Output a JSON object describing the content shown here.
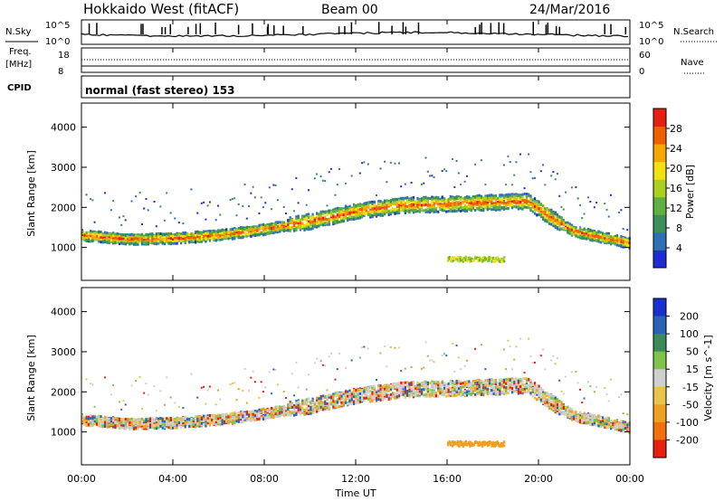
{
  "header": {
    "radar": "Hokkaido West (fitACF)",
    "beam": "Beam 00",
    "date": "24/Mar/2016"
  },
  "noise_panel": {
    "left_label": "N.Sky",
    "right_label": "N.Search",
    "left_ticks": [
      "10^5",
      "10^0"
    ],
    "right_ticks": [
      "10^5",
      "10^0"
    ]
  },
  "freq_panel": {
    "left_label_1": "Freq.",
    "left_label_2": "[MHz]",
    "left_ticks": [
      "18",
      "8"
    ],
    "right_label": "Nave",
    "right_ticks": [
      "60",
      "0"
    ]
  },
  "cpid_panel": {
    "label": "CPID",
    "text": "normal (fast stereo) 153"
  },
  "chart_data": [
    {
      "type": "heatmap",
      "name": "power",
      "ylabel": "Slant Range [km]",
      "xlabel": "Time UT",
      "xlim": [
        0,
        24
      ],
      "x_ticks": [
        "00:00",
        "04:00",
        "08:00",
        "12:00",
        "16:00",
        "20:00",
        "00:00"
      ],
      "ylim": [
        180,
        4600
      ],
      "y_ticks": [
        1000,
        2000,
        3000,
        4000
      ],
      "colorbar": {
        "label": "Power [dB]",
        "ticks": [
          "4",
          "8",
          "12",
          "16",
          "20",
          "24",
          "28"
        ],
        "colors": [
          "#1f2bd6",
          "#2f6fb3",
          "#3c8f5a",
          "#5fb040",
          "#a8d020",
          "#f2e010",
          "#f7a800",
          "#f06000",
          "#e62010"
        ]
      },
      "band": [
        {
          "t": 0,
          "r": 1300
        },
        {
          "t": 2,
          "r": 1200
        },
        {
          "t": 4,
          "r": 1220
        },
        {
          "t": 6,
          "r": 1300
        },
        {
          "t": 8,
          "r": 1450
        },
        {
          "t": 10,
          "r": 1650
        },
        {
          "t": 12,
          "r": 1900
        },
        {
          "t": 14,
          "r": 2050
        },
        {
          "t": 16,
          "r": 2080
        },
        {
          "t": 18,
          "r": 2120
        },
        {
          "t": 19.5,
          "r": 2150
        },
        {
          "t": 20.5,
          "r": 1750
        },
        {
          "t": 21.5,
          "r": 1400
        },
        {
          "t": 24,
          "r": 1100
        }
      ],
      "patch": {
        "t0": 16,
        "t1": 18.5,
        "r": 700
      }
    },
    {
      "type": "heatmap",
      "name": "velocity",
      "ylabel": "Slant Range [km]",
      "xlabel": "Time UT",
      "xlim": [
        0,
        24
      ],
      "x_ticks": [
        "00:00",
        "04:00",
        "08:00",
        "12:00",
        "16:00",
        "20:00",
        "00:00"
      ],
      "ylim": [
        180,
        4600
      ],
      "y_ticks": [
        1000,
        2000,
        3000,
        4000
      ],
      "colorbar": {
        "label": "Velocity [m s^-1]",
        "ticks": [
          "200",
          "100",
          "50",
          "15",
          "-15",
          "-50",
          "-100",
          "-200"
        ],
        "colors": [
          "#1a2fd0",
          "#2a62b8",
          "#3c8a5a",
          "#7ec44a",
          "#cfcfcf",
          "#e8c44a",
          "#f0a020",
          "#f27010",
          "#e81e10"
        ]
      }
    }
  ]
}
